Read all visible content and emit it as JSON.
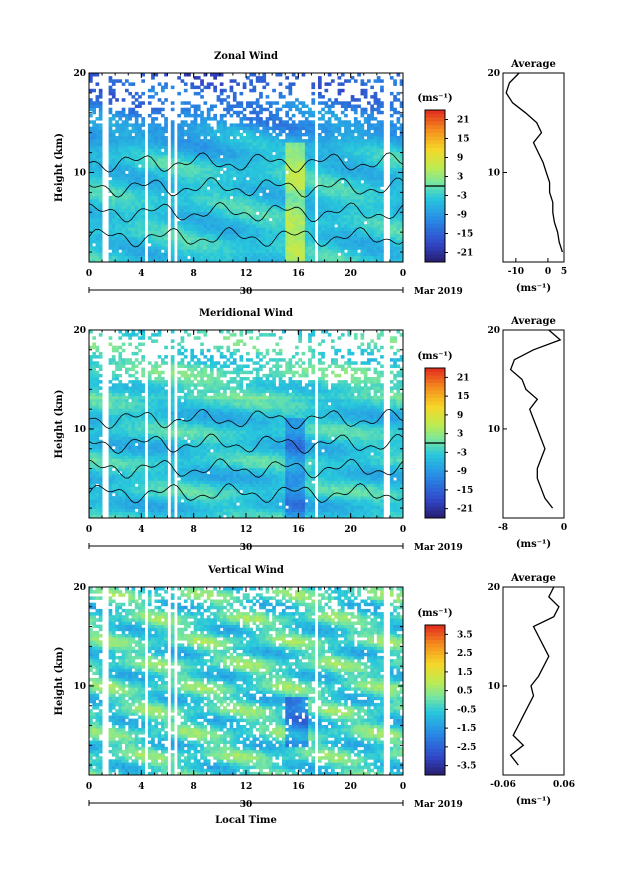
{
  "date_label": "Mar 2019",
  "day_label": "30",
  "xlabel_bottom": "Local Time",
  "unit_label": "(ms⁻¹)",
  "chart_data": [
    {
      "type": "heatmap",
      "title": "Zonal Wind",
      "ylabel": "Height (km)",
      "x_ticks": [
        "0",
        "4",
        "8",
        "12",
        "16",
        "20",
        "0"
      ],
      "y_ticks": [
        "10",
        "20"
      ],
      "xlim": [
        0,
        24
      ],
      "ylim": [
        1,
        20
      ],
      "colorbar_ticks": [
        "21",
        "15",
        "9",
        "3",
        "-3",
        "-9",
        "-15",
        "-21"
      ],
      "colorbar_range": [
        -24,
        24
      ],
      "colorbar_unit": "(ms⁻¹)",
      "contour_level": 0,
      "average_profile": {
        "title": "Average",
        "xlabel": "(ms⁻¹)",
        "x_ticks": [
          "-10",
          "0",
          "5"
        ],
        "xlim": [
          -14,
          5
        ],
        "y_ticks": [
          "10",
          "20"
        ],
        "height_km": [
          2,
          3,
          4,
          5,
          6,
          7,
          8,
          9,
          10,
          11,
          12,
          13,
          14,
          15,
          16,
          17,
          18,
          19,
          20
        ],
        "values": [
          4.5,
          3.5,
          3,
          2,
          1.5,
          1.5,
          0.5,
          0.5,
          -0.5,
          -1.5,
          -3,
          -4.5,
          -2,
          -3.5,
          -7,
          -11,
          -13,
          -12,
          -9
        ]
      }
    },
    {
      "type": "heatmap",
      "title": "Meridional Wind",
      "ylabel": "Height (km)",
      "x_ticks": [
        "0",
        "4",
        "8",
        "12",
        "16",
        "20",
        "0"
      ],
      "y_ticks": [
        "10",
        "20"
      ],
      "xlim": [
        0,
        24
      ],
      "ylim": [
        1,
        20
      ],
      "colorbar_ticks": [
        "21",
        "15",
        "9",
        "3",
        "-3",
        "-9",
        "-15",
        "-21"
      ],
      "colorbar_range": [
        -24,
        24
      ],
      "colorbar_unit": "(ms⁻¹)",
      "contour_level": 0,
      "average_profile": {
        "title": "Average",
        "xlabel": "(ms⁻¹)",
        "x_ticks": [
          "-8",
          "0"
        ],
        "xlim": [
          -8,
          0
        ],
        "y_ticks": [
          "10",
          "20"
        ],
        "height_km": [
          2,
          3,
          4,
          5,
          6,
          7,
          8,
          9,
          10,
          11,
          12,
          13,
          14,
          15,
          16,
          17,
          18,
          19,
          20
        ],
        "values": [
          -1.5,
          -2.5,
          -3,
          -3.5,
          -3.5,
          -3,
          -2.5,
          -3,
          -3.5,
          -4,
          -4.5,
          -3.5,
          -5,
          -5.5,
          -7,
          -6.5,
          -4,
          -0.5,
          -2
        ]
      }
    },
    {
      "type": "heatmap",
      "title": "Vertical Wind",
      "ylabel": "Height (km)",
      "xlabel": "Local Time",
      "x_ticks": [
        "0",
        "4",
        "8",
        "12",
        "16",
        "20",
        "0"
      ],
      "y_ticks": [
        "10",
        "20"
      ],
      "xlim": [
        0,
        24
      ],
      "ylim": [
        1,
        20
      ],
      "colorbar_ticks": [
        "3.5",
        "2.5",
        "1.5",
        "0.5",
        "-0.5",
        "-1.5",
        "-2.5",
        "-3.5"
      ],
      "colorbar_range": [
        -4,
        4
      ],
      "colorbar_unit": "(ms⁻¹)",
      "average_profile": {
        "title": "Average",
        "xlabel": "(ms⁻¹)",
        "x_ticks": [
          "-0.06",
          "0.06"
        ],
        "xlim": [
          -0.06,
          0.06
        ],
        "y_ticks": [
          "10",
          "20"
        ],
        "height_km": [
          2,
          3,
          4,
          5,
          6,
          7,
          8,
          9,
          10,
          11,
          12,
          13,
          14,
          15,
          16,
          17,
          18,
          19,
          20
        ],
        "values": [
          -0.03,
          -0.045,
          -0.02,
          -0.04,
          -0.03,
          -0.02,
          -0.01,
          0.0,
          -0.005,
          0.01,
          0.02,
          0.03,
          0.02,
          0.01,
          0.0,
          0.04,
          0.05,
          0.03,
          0.04
        ]
      }
    }
  ]
}
